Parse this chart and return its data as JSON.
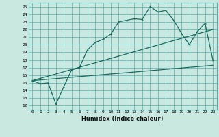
{
  "xlabel": "Humidex (Indice chaleur)",
  "ylabel": "",
  "xlim": [
    -0.5,
    23.5
  ],
  "ylim": [
    11.5,
    25.5
  ],
  "xticks": [
    0,
    1,
    2,
    3,
    4,
    5,
    6,
    7,
    8,
    9,
    10,
    11,
    12,
    13,
    14,
    15,
    16,
    17,
    18,
    19,
    20,
    21,
    22,
    23
  ],
  "yticks": [
    12,
    13,
    14,
    15,
    16,
    17,
    18,
    19,
    20,
    21,
    22,
    23,
    24,
    25
  ],
  "bg_color": "#c8e8e0",
  "grid_color": "#5aadaa",
  "line_color": "#1a6b60",
  "line1_x": [
    0,
    1,
    2,
    3,
    4,
    5,
    6,
    7,
    8,
    9,
    10,
    11,
    12,
    13,
    14,
    15,
    16,
    17,
    18,
    19,
    20,
    21,
    22,
    23
  ],
  "line1_y": [
    15.3,
    14.9,
    15.0,
    12.2,
    14.5,
    16.7,
    17.0,
    19.3,
    20.3,
    20.7,
    21.4,
    23.0,
    23.2,
    23.4,
    23.3,
    25.0,
    24.3,
    24.5,
    23.2,
    21.5,
    20.0,
    21.7,
    22.8,
    18.0
  ],
  "line2_x": [
    0,
    23
  ],
  "line2_y": [
    15.3,
    17.3
  ],
  "line3_x": [
    0,
    23
  ],
  "line3_y": [
    15.3,
    22.0
  ]
}
